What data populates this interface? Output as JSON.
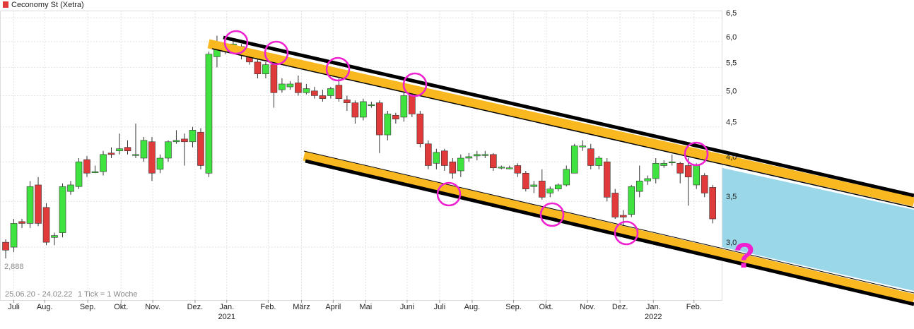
{
  "chart_data": {
    "type": "candlestick",
    "title": "Ceconomy St (Xetra)",
    "period": "25.06.20 - 24.02.22",
    "interval": "1 Tick = 1 Woche",
    "low_label": {
      "value": 2.888,
      "label": "2,888"
    },
    "question": "?",
    "log_scale": true,
    "grid": true,
    "legend_color": "#e03a3a",
    "up_color": "#3fe33f",
    "down_color": "#e03a3a",
    "xlim": [
      -0.7,
      88.2
    ],
    "ylim": [
      2.51,
      6.66
    ],
    "yticks": [
      {
        "value": 3.0,
        "label": "3,0"
      },
      {
        "value": 3.5,
        "label": "3,5"
      },
      {
        "value": 4.0,
        "label": "4,0"
      },
      {
        "value": 4.5,
        "label": "4,5"
      },
      {
        "value": 5.0,
        "label": "5,0"
      },
      {
        "value": 5.5,
        "label": "5,5"
      },
      {
        "value": 6.0,
        "label": "6,0"
      },
      {
        "value": 6.5,
        "label": "6,5"
      }
    ],
    "xticks": [
      {
        "value": 1,
        "label": "Juli"
      },
      {
        "value": 4.8,
        "label": "Aug."
      },
      {
        "value": 10.1,
        "label": "Sep."
      },
      {
        "value": 14.2,
        "label": "Okt."
      },
      {
        "value": 18.1,
        "label": "Nov."
      },
      {
        "value": 23.3,
        "label": "Dez."
      },
      {
        "value": 27.2,
        "label": "Jan.",
        "year": "2021"
      },
      {
        "value": 32.3,
        "label": "Feb."
      },
      {
        "value": 36.4,
        "label": "März"
      },
      {
        "value": 40.3,
        "label": "April"
      },
      {
        "value": 44.3,
        "label": "Mai"
      },
      {
        "value": 49.4,
        "label": "Juni"
      },
      {
        "value": 53.4,
        "label": "Juli"
      },
      {
        "value": 57.4,
        "label": "Aug."
      },
      {
        "value": 62.5,
        "label": "Sep."
      },
      {
        "value": 66.5,
        "label": "Okt."
      },
      {
        "value": 71.6,
        "label": "Nov."
      },
      {
        "value": 75.6,
        "label": "Dez."
      },
      {
        "value": 79.7,
        "label": "Jan.",
        "year": "2022"
      },
      {
        "value": 84.7,
        "label": "Feb."
      }
    ],
    "open": [
      3.05,
      3.0,
      3.27,
      3.25,
      3.7,
      3.43,
      3.1,
      3.15,
      3.62,
      3.68,
      4.03,
      3.87,
      3.87,
      4.12,
      4.15,
      4.2,
      4.1,
      4.05,
      4.28,
      3.9,
      4.05,
      4.28,
      4.32,
      4.28,
      4.42,
      3.85,
      5.7,
      5.9,
      5.8,
      5.9,
      5.7,
      5.6,
      5.38,
      5.55,
      5.1,
      5.15,
      5.22,
      5.05,
      5.08,
      5.0,
      5.0,
      5.18,
      4.93,
      4.88,
      4.65,
      4.85,
      4.88,
      4.38,
      4.68,
      4.65,
      5.0,
      4.7,
      4.25,
      3.98,
      4.15,
      4.0,
      3.88,
      4.05,
      4.08,
      4.1,
      4.1,
      3.92,
      3.92,
      3.95,
      3.85,
      3.68,
      3.75,
      3.6,
      3.65,
      3.7,
      3.85,
      4.22,
      4.18,
      3.95,
      4.0,
      3.6,
      3.34,
      3.35,
      3.62,
      3.75,
      3.78,
      3.95,
      4.0,
      3.98,
      3.95,
      3.7,
      3.82,
      3.67
    ],
    "high": [
      3.08,
      3.3,
      3.3,
      3.75,
      3.8,
      3.48,
      3.15,
      3.72,
      3.75,
      4.05,
      4.08,
      3.95,
      4.15,
      4.2,
      4.4,
      4.3,
      4.55,
      4.35,
      4.35,
      4.1,
      4.3,
      4.45,
      4.4,
      4.5,
      4.48,
      5.8,
      6.12,
      5.98,
      6.0,
      5.95,
      5.75,
      5.65,
      5.6,
      5.6,
      5.3,
      5.25,
      5.35,
      5.2,
      5.15,
      5.1,
      5.15,
      5.3,
      5.0,
      4.92,
      4.95,
      4.9,
      4.92,
      4.75,
      4.72,
      5.05,
      5.1,
      4.75,
      4.3,
      4.18,
      4.18,
      4.05,
      4.1,
      4.12,
      4.15,
      4.15,
      4.12,
      3.95,
      3.95,
      3.98,
      3.88,
      3.75,
      3.9,
      3.68,
      3.72,
      3.95,
      4.25,
      4.3,
      4.25,
      4.08,
      4.05,
      3.65,
      3.4,
      3.7,
      3.95,
      3.82,
      4.05,
      4.02,
      4.1,
      4.0,
      4.05,
      3.98,
      3.85,
      3.7
    ],
    "low": [
      2.888,
      2.95,
      3.2,
      3.2,
      3.22,
      3.02,
      3.02,
      3.1,
      3.58,
      3.65,
      3.8,
      3.85,
      3.82,
      4.05,
      4.1,
      4.1,
      4.05,
      4.0,
      3.75,
      3.85,
      4.0,
      4.25,
      3.95,
      4.2,
      3.9,
      3.8,
      5.5,
      5.75,
      5.75,
      5.65,
      5.55,
      5.3,
      5.3,
      4.8,
      5.05,
      5.1,
      5.0,
      5.02,
      4.95,
      4.9,
      4.95,
      4.9,
      4.75,
      4.55,
      4.6,
      4.8,
      4.12,
      4.3,
      4.55,
      4.58,
      4.65,
      4.2,
      3.9,
      3.9,
      3.88,
      3.78,
      3.8,
      4.0,
      4.02,
      4.05,
      3.88,
      3.9,
      3.9,
      3.8,
      3.62,
      3.6,
      3.52,
      3.55,
      3.62,
      3.68,
      3.85,
      4.15,
      3.9,
      3.9,
      3.5,
      3.3,
      3.12,
      3.32,
      3.55,
      3.7,
      3.72,
      3.92,
      3.95,
      3.72,
      3.45,
      3.65,
      3.55,
      3.25
    ],
    "close": [
      2.97,
      3.25,
      3.25,
      3.68,
      3.25,
      3.05,
      3.12,
      3.68,
      3.7,
      4.0,
      3.85,
      3.87,
      4.1,
      4.1,
      4.18,
      4.15,
      4.1,
      4.3,
      3.85,
      4.05,
      4.28,
      4.3,
      4.28,
      4.45,
      3.95,
      5.75,
      5.95,
      5.8,
      5.95,
      5.75,
      5.6,
      5.38,
      5.55,
      5.05,
      5.2,
      5.2,
      5.05,
      5.12,
      5.0,
      4.95,
      5.12,
      4.95,
      4.88,
      4.65,
      4.9,
      4.85,
      4.38,
      4.7,
      4.62,
      5.0,
      4.7,
      4.25,
      3.95,
      4.13,
      3.95,
      3.85,
      4.05,
      4.07,
      4.1,
      4.1,
      3.92,
      3.93,
      3.92,
      3.85,
      3.65,
      3.7,
      3.55,
      3.65,
      3.7,
      3.9,
      4.22,
      4.22,
      3.95,
      4.05,
      3.55,
      3.32,
      3.32,
      3.68,
      3.75,
      3.78,
      3.98,
      3.98,
      4.0,
      3.85,
      3.8,
      3.95,
      3.6,
      3.3
    ]
  }
}
